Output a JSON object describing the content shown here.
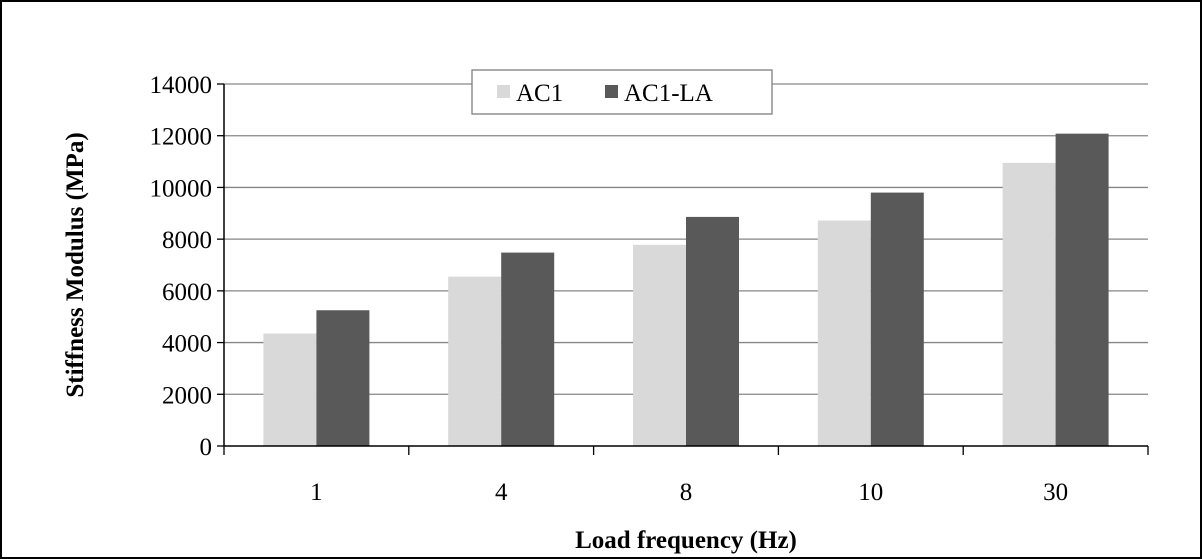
{
  "chart_data": {
    "type": "bar",
    "title": "",
    "xlabel": "Load frequency (Hz)",
    "ylabel": "Stiffness Modulus (MPa)",
    "categories": [
      "1",
      "4",
      "8",
      "10",
      "30"
    ],
    "series": [
      {
        "name": "AC1",
        "values": [
          4350,
          6550,
          7780,
          8720,
          10950
        ],
        "color": "#d9d9d9"
      },
      {
        "name": "AC1-LA",
        "values": [
          5250,
          7480,
          8860,
          9800,
          12080
        ],
        "color": "#595959"
      }
    ],
    "ylim": [
      0,
      14000
    ],
    "yticks": [
      "0",
      "2000",
      "4000",
      "6000",
      "8000",
      "10000",
      "12000",
      "14000"
    ],
    "grid": true,
    "legend_position": "top-center"
  }
}
